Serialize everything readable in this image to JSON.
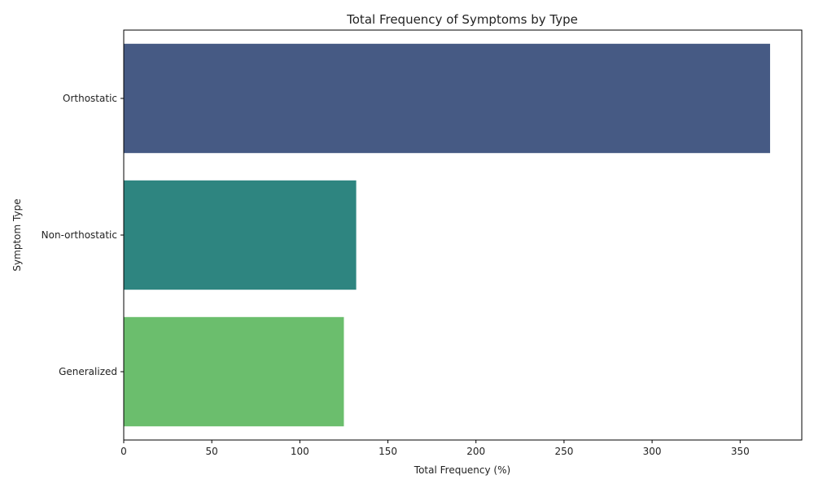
{
  "chart_data": {
    "type": "bar",
    "orientation": "horizontal",
    "title": "Total Frequency of Symptoms by Type",
    "xlabel": "Total Frequency (%)",
    "ylabel": "Symptom Type",
    "categories": [
      "Orthostatic",
      "Non-orthostatic",
      "Generalized"
    ],
    "values": [
      367,
      132,
      125
    ],
    "colors": [
      "#465a84",
      "#2e8580",
      "#6bbe6d"
    ],
    "xlim": [
      0,
      385
    ],
    "xticks": [
      0,
      50,
      100,
      150,
      200,
      250,
      300,
      350
    ],
    "grid": false,
    "legend": "none"
  }
}
